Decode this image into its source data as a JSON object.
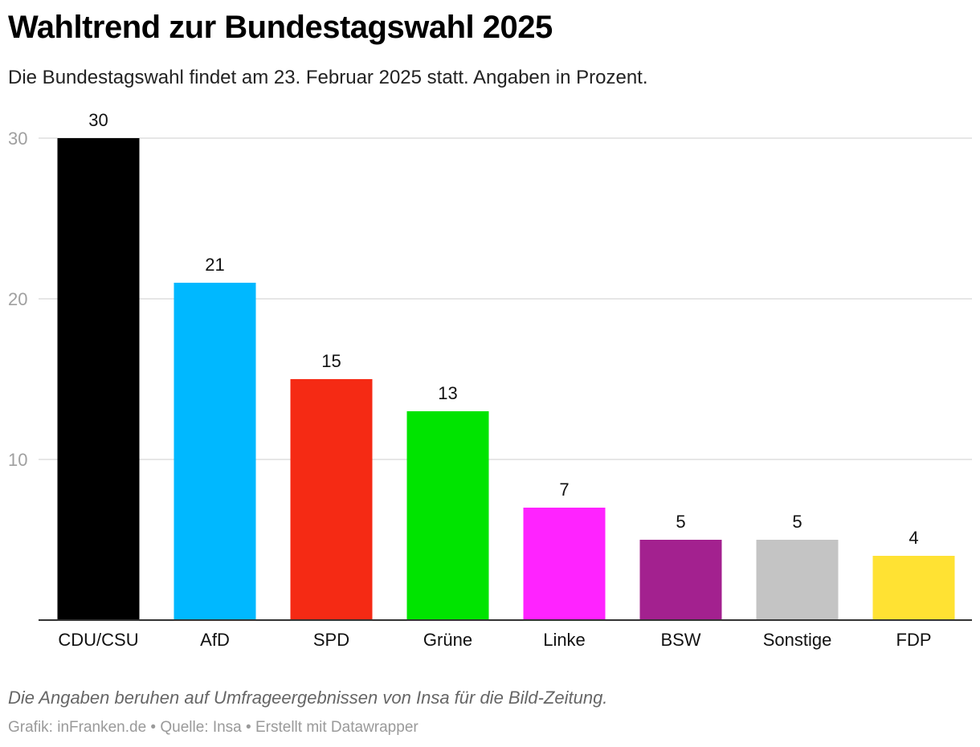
{
  "chart_data": {
    "type": "bar",
    "title": "Wahltrend zur Bundestagswahl 2025",
    "subtitle": "Die Bundestagswahl findet am 23. Februar 2025 statt. Angaben in Prozent.",
    "categories": [
      "CDU/CSU",
      "AfD",
      "SPD",
      "Grüne",
      "Linke",
      "BSW",
      "Sonstige",
      "FDP"
    ],
    "values": [
      30,
      21,
      15,
      13,
      7,
      5,
      5,
      4
    ],
    "colors": [
      "#000000",
      "#00b8ff",
      "#f52a14",
      "#00e400",
      "#ff23ff",
      "#a3218f",
      "#c4c4c4",
      "#ffe233"
    ],
    "yticks": [
      10,
      20,
      30
    ],
    "ylim": [
      0,
      30
    ],
    "grid": true,
    "xlabel": "",
    "ylabel": ""
  },
  "notes": "Die Angaben beruhen auf Umfrageergebnissen von Insa für die Bild-Zeitung.",
  "footer": {
    "grafik": "Grafik: inFranken.de",
    "quelle": "Quelle: Insa",
    "erstellt": "Erstellt mit Datawrapper",
    "separator": " • "
  }
}
